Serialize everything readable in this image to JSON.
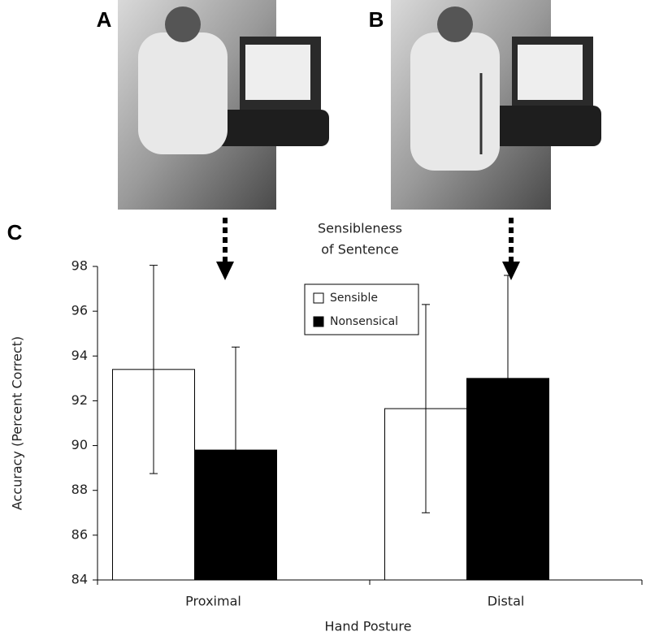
{
  "panel_labels": [
    "A",
    "B",
    "C"
  ],
  "chart_data": {
    "type": "bar",
    "x_label": "Hand Posture",
    "y_label": "Accuracy (Percent Correct)",
    "legend_title": [
      "Sensibleness",
      "of Sentence"
    ],
    "categories": [
      "Proximal",
      "Distal"
    ],
    "series": [
      {
        "name": "Sensible",
        "color": "#ffffff",
        "values": [
          93.4,
          91.65
        ],
        "errors": [
          4.65,
          4.65
        ]
      },
      {
        "name": "Nonsensical",
        "color": "#000000",
        "values": [
          89.8,
          93.0
        ],
        "errors": [
          4.6,
          4.6
        ]
      }
    ],
    "ylim": [
      84,
      98
    ],
    "yticks": [
      84,
      86,
      88,
      90,
      92,
      94,
      96,
      98
    ],
    "grid": false
  }
}
